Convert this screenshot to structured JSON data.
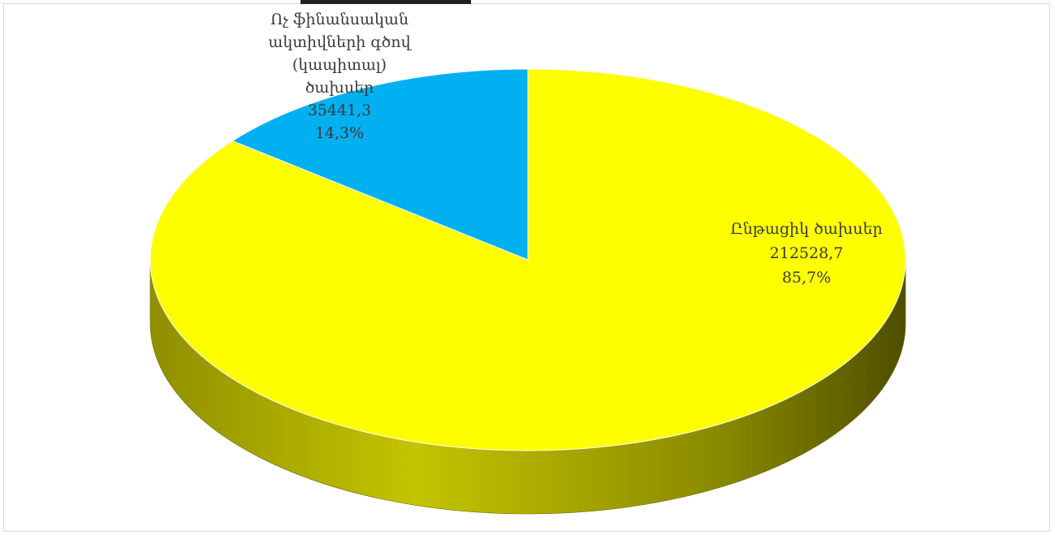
{
  "chart_data": {
    "type": "pie",
    "title": "",
    "slices": [
      {
        "label_lines": [
          "Ընթացիկ ծախսեր"
        ],
        "value": 212528.7,
        "value_text": "212528,7",
        "percent": 85.7,
        "percent_text": "85,7%",
        "color": "#ffff00"
      },
      {
        "label_lines": [
          "Ոչ ֆինանսական",
          "ակտիվների գծով",
          "(կապիտալ)",
          "ծախսեր"
        ],
        "value": 35441.3,
        "value_text": "35441,3",
        "percent": 14.3,
        "percent_text": "14,3%",
        "color": "#00b0f0"
      }
    ],
    "style": "3d"
  }
}
